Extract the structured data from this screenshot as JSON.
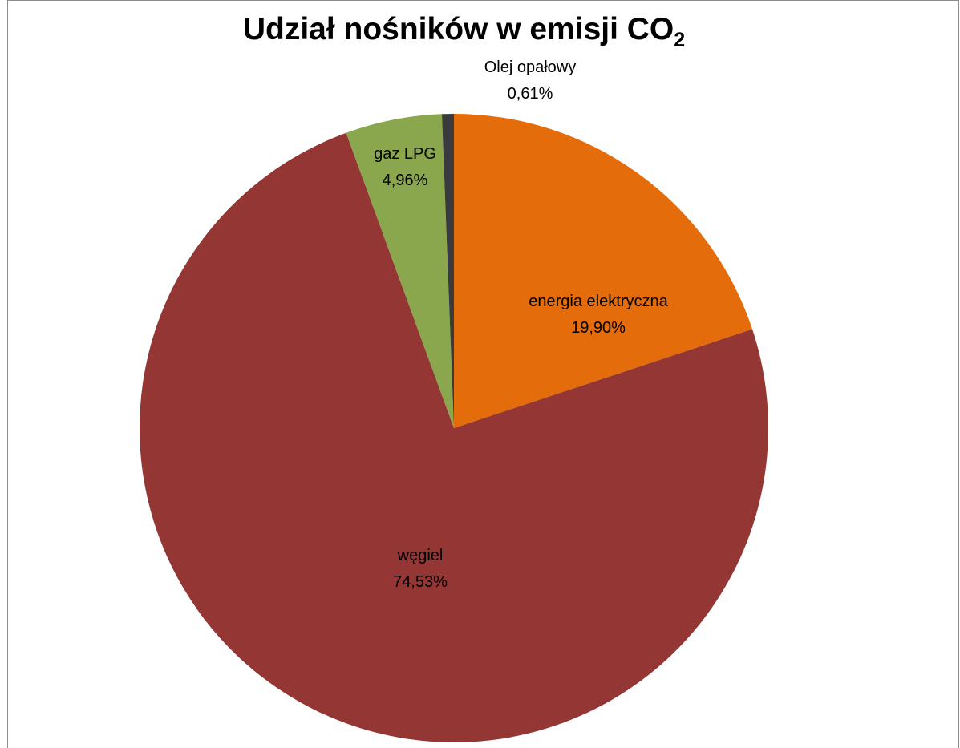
{
  "chart_data": {
    "type": "pie",
    "title": "Udział nośników w emisji CO",
    "title_subscript": "2",
    "categories": [
      "energia elektryczna",
      "węgiel",
      "gaz LPG",
      "Olej opałowy"
    ],
    "values": [
      19.9,
      74.53,
      4.96,
      0.61
    ],
    "value_labels": [
      "19,90%",
      "74,53%",
      "4,96%",
      "0,61%"
    ],
    "unit": "%",
    "colors": [
      "#E46C0A",
      "#943634",
      "#8AA74E",
      "#3A3A3A"
    ],
    "legend": "none",
    "start_direction": "top-clockwise"
  }
}
